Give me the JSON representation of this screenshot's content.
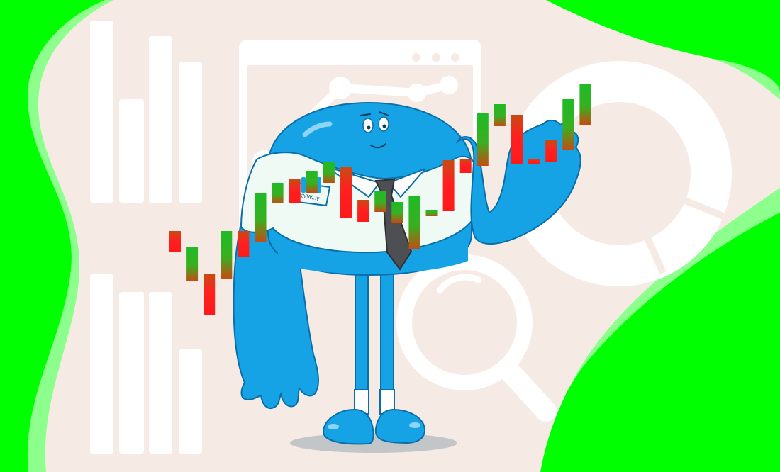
{
  "colors": {
    "background_green": "#00ff00",
    "soft_green": "#8cff8c",
    "cream": "#f6ebe4",
    "white_shapes": "#ffffff",
    "mascot_blue": "#16a3e6",
    "mascot_outline": "#0a6ea8",
    "shirt": "#eefaf3",
    "tie": "#4d4f53",
    "candle_up": "#1fba27",
    "candle_down": "#ff1f1f",
    "shadow": "#c3c6c8"
  },
  "icons": [
    "bar-chart-icon",
    "line-chart-icon",
    "donut-chart-icon",
    "magnifier-icon",
    "candlestick-chart-icon"
  ],
  "mascot": {
    "pocket_logo_text": "KYW...y"
  },
  "candles": [
    {
      "dir": "down",
      "o": 356,
      "c": 326
    },
    {
      "dir": "up",
      "o": 397,
      "c": 348
    },
    {
      "dir": "down",
      "o": 387,
      "c": 445
    },
    {
      "dir": "up",
      "o": 393,
      "c": 326
    },
    {
      "dir": "down",
      "o": 326,
      "c": 362
    },
    {
      "dir": "up",
      "o": 342,
      "c": 272
    },
    {
      "dir": "up",
      "o": 287,
      "c": 258
    },
    {
      "dir": "down",
      "o": 253,
      "c": 286
    },
    {
      "dir": "up",
      "o": 272,
      "c": 241
    },
    {
      "dir": "up",
      "o": 258,
      "c": 228
    },
    {
      "dir": "down",
      "o": 236,
      "c": 307
    },
    {
      "dir": "down",
      "o": 282,
      "c": 313
    },
    {
      "dir": "up",
      "o": 299,
      "c": 270
    },
    {
      "dir": "up",
      "o": 314,
      "c": 285
    },
    {
      "dir": "up",
      "o": 352,
      "c": 277
    },
    {
      "dir": "up",
      "o": 305,
      "c": 296
    },
    {
      "dir": "down",
      "o": 226,
      "c": 298
    },
    {
      "dir": "down",
      "o": 224,
      "c": 244
    },
    {
      "dir": "up",
      "o": 234,
      "c": 160
    },
    {
      "dir": "up",
      "o": 178,
      "c": 147
    },
    {
      "dir": "down",
      "o": 162,
      "c": 232
    },
    {
      "dir": "down",
      "o": 224,
      "c": 232
    },
    {
      "dir": "down",
      "o": 198,
      "c": 228
    },
    {
      "dir": "up",
      "o": 212,
      "c": 140
    },
    {
      "dir": "up",
      "o": 176,
      "c": 119
    }
  ]
}
